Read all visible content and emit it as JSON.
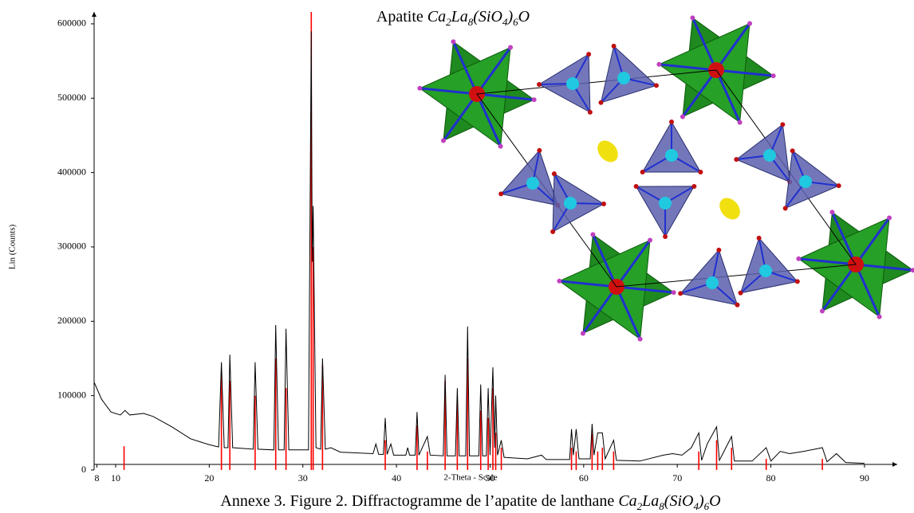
{
  "chart_data": {
    "type": "line",
    "title": "Apatite Ca2La8(SiO4)6O",
    "caption": "Annexe 3. Figure 2. Diffractogramme de l’apatite de lanthane Ca2La8(SiO4)6O",
    "x_label": "2-Theta - Scale",
    "y_label": "Lin (Counts)",
    "color": "#000000",
    "x": [
      7.7,
      8.5,
      9.5,
      10.5,
      11,
      11.5,
      13,
      14,
      16,
      18,
      20,
      21,
      21.3,
      21.6,
      22,
      22.2,
      22.5,
      24.7,
      24.9,
      25.2,
      26.9,
      27.1,
      27.4,
      28,
      28.2,
      28.5,
      30.6,
      30.9,
      31,
      31.1,
      31.4,
      31.9,
      32.1,
      32.4,
      33,
      34,
      37.5,
      37.8,
      38.1,
      38.6,
      38.8,
      39,
      39.4,
      39.7,
      41,
      41.2,
      41.4,
      42,
      42.2,
      42.4,
      43.3,
      43.6,
      45,
      45.2,
      45.4,
      46.3,
      46.5,
      46.7,
      47.4,
      47.6,
      47.8,
      48.8,
      49,
      49.2,
      49.6,
      49.8,
      50,
      50.3,
      50.5,
      50.6,
      50.8,
      51.2,
      51.5,
      54,
      55.5,
      56,
      58.5,
      58.7,
      58.9,
      59.2,
      59.5,
      60.7,
      60.9,
      61.1,
      61.5,
      62,
      62.3,
      63.2,
      63.5,
      66,
      68.5,
      69.5,
      70.5,
      71.5,
      72.3,
      72.6,
      73.2,
      74.2,
      74.5,
      75.8,
      76.1,
      78,
      79.5,
      80,
      81,
      82,
      83.5,
      85.5,
      86,
      87,
      88,
      90
    ],
    "values": [
      118000,
      95000,
      78000,
      74000,
      80000,
      74000,
      76000,
      72000,
      58000,
      42000,
      34000,
      31000,
      145000,
      30000,
      30000,
      155000,
      30000,
      28000,
      145000,
      28000,
      27000,
      195000,
      27000,
      27000,
      190000,
      27000,
      27000,
      590000,
      280000,
      355000,
      30000,
      28000,
      150000,
      28000,
      30000,
      24000,
      22000,
      35000,
      21000,
      21000,
      70000,
      21000,
      35000,
      20000,
      20000,
      30000,
      20000,
      20000,
      78000,
      20000,
      45000,
      20000,
      19000,
      128000,
      19000,
      19000,
      110000,
      19000,
      19000,
      193000,
      19000,
      19000,
      115000,
      19000,
      19000,
      110000,
      20000,
      138000,
      30000,
      100000,
      20000,
      40000,
      17000,
      15000,
      20000,
      14000,
      14000,
      55000,
      20000,
      55000,
      15000,
      15000,
      62000,
      20000,
      50000,
      50000,
      15000,
      40000,
      13000,
      12000,
      20000,
      22000,
      20000,
      30000,
      50000,
      13000,
      35000,
      58000,
      13000,
      45000,
      12000,
      12000,
      30000,
      12000,
      25000,
      22000,
      25000,
      30000,
      11000,
      22000,
      10000,
      9000
    ],
    "reference": {
      "color": "#ff0000",
      "x": [
        10.9,
        21.3,
        22.2,
        24.9,
        27.1,
        28.2,
        30.9,
        31.1,
        32.1,
        38.8,
        42.2,
        43.3,
        45.2,
        46.5,
        47.6,
        49,
        49.8,
        50.3,
        50.6,
        51.2,
        58.7,
        59.2,
        60.9,
        61.5,
        62,
        63.2,
        72.3,
        74.2,
        75.8,
        79.5,
        85.5
      ],
      "values": [
        32000,
        130000,
        120000,
        100000,
        150000,
        110000,
        616000,
        300000,
        140000,
        40000,
        60000,
        25000,
        120000,
        90000,
        150000,
        80000,
        70000,
        110000,
        50000,
        30000,
        30000,
        25000,
        50000,
        25000,
        30000,
        25000,
        25000,
        40000,
        30000,
        15000,
        15000
      ]
    },
    "xlim": [
      7.7,
      93.5
    ],
    "ylim": [
      0,
      616000
    ],
    "xticks": [
      8,
      10,
      20,
      30,
      40,
      50,
      60,
      70,
      80,
      90
    ],
    "yticks": [
      0,
      100000,
      200000,
      300000,
      400000,
      500000,
      600000
    ]
  }
}
